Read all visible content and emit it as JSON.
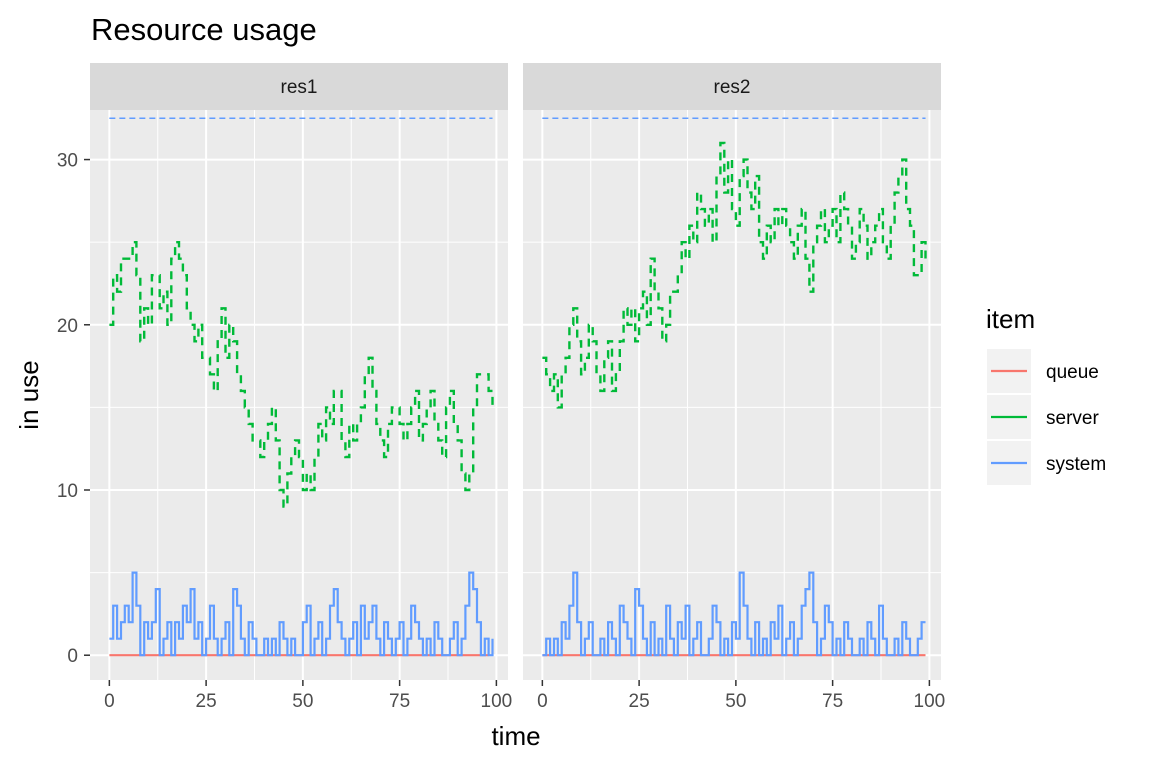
{
  "chart_data": {
    "type": "line",
    "title": "Resource usage",
    "xlabel": "time",
    "ylabel": "in use",
    "xlim": [
      -5,
      103
    ],
    "ylim": [
      -1.5,
      33
    ],
    "x_ticks": [
      0,
      25,
      50,
      75,
      100
    ],
    "x_tick_labels": [
      "0",
      "25",
      "50",
      "75",
      "100"
    ],
    "y_ticks": [
      0,
      10,
      20,
      30
    ],
    "y_tick_labels": [
      "0",
      "10",
      "20",
      "30"
    ],
    "grid": true,
    "legend": {
      "title": "item",
      "position": "right",
      "entries": [
        {
          "name": "queue",
          "color": "#f8766d"
        },
        {
          "name": "server",
          "color": "#00ba38"
        },
        {
          "name": "system",
          "color": "#619cff"
        }
      ]
    },
    "capacity_line": {
      "value": 32.5,
      "color": "#619cff",
      "style": "dashed"
    },
    "panels": [
      {
        "label": "res1",
        "series": [
          {
            "name": "queue",
            "color": "#f8766d",
            "style": "solid",
            "x": [
              0,
              98
            ],
            "y": [
              0,
              0
            ]
          },
          {
            "name": "server",
            "color": "#00ba38",
            "style": "dashed",
            "x": [
              0,
              1,
              2,
              3,
              4,
              5,
              6,
              7,
              8,
              9,
              10,
              11,
              12,
              13,
              14,
              15,
              16,
              17,
              18,
              19,
              20,
              21,
              22,
              23,
              24,
              25,
              26,
              27,
              28,
              29,
              30,
              31,
              32,
              33,
              34,
              35,
              36,
              37,
              38,
              39,
              40,
              41,
              42,
              43,
              44,
              45,
              46,
              47,
              48,
              49,
              50,
              51,
              52,
              53,
              54,
              55,
              56,
              57,
              58,
              59,
              60,
              61,
              62,
              63,
              64,
              65,
              66,
              67,
              68,
              69,
              70,
              71,
              72,
              73,
              74,
              75,
              76,
              77,
              78,
              79,
              80,
              81,
              82,
              83,
              84,
              85,
              86,
              87,
              88,
              89,
              90,
              91,
              92,
              93,
              94,
              95,
              96,
              97,
              98,
              99
            ],
            "y": [
              20,
              23,
              22,
              24,
              24,
              24,
              25,
              23,
              19,
              21,
              20,
              23,
              23,
              21,
              22,
              20,
              24,
              25,
              24,
              23,
              21,
              20,
              19,
              20,
              18,
              18,
              17,
              16,
              19,
              21,
              18,
              20,
              19,
              17,
              16,
              15,
              14,
              13,
              13,
              12,
              13,
              14,
              15,
              13,
              10,
              9,
              11,
              12,
              13,
              12,
              10,
              11,
              10,
              12,
              14,
              13,
              15,
              14,
              16,
              16,
              13,
              12,
              14,
              13,
              14,
              15,
              17,
              18,
              16,
              14,
              13,
              12,
              14,
              15,
              15,
              14,
              13,
              14,
              15,
              16,
              13,
              14,
              15,
              16,
              14,
              13,
              12,
              15,
              16,
              14,
              13,
              11,
              10,
              11,
              15,
              17,
              17,
              17,
              16,
              15
            ]
          },
          {
            "name": "system",
            "color": "#619cff",
            "style": "solid",
            "x": [
              0,
              1,
              2,
              3,
              4,
              5,
              6,
              7,
              8,
              9,
              10,
              11,
              12,
              13,
              14,
              15,
              16,
              17,
              18,
              19,
              20,
              21,
              22,
              23,
              24,
              25,
              26,
              27,
              28,
              29,
              30,
              31,
              32,
              33,
              34,
              35,
              36,
              37,
              38,
              39,
              40,
              41,
              42,
              43,
              44,
              45,
              46,
              47,
              48,
              49,
              50,
              51,
              52,
              53,
              54,
              55,
              56,
              57,
              58,
              59,
              60,
              61,
              62,
              63,
              64,
              65,
              66,
              67,
              68,
              69,
              70,
              71,
              72,
              73,
              74,
              75,
              76,
              77,
              78,
              79,
              80,
              81,
              82,
              83,
              84,
              85,
              86,
              87,
              88,
              89,
              90,
              91,
              92,
              93,
              94,
              95,
              96,
              97,
              98,
              99
            ],
            "y": [
              1,
              3,
              1,
              2,
              3,
              2,
              5,
              3,
              0,
              2,
              1,
              2,
              4,
              0,
              1,
              2,
              0,
              2,
              1,
              3,
              2,
              4,
              1,
              2,
              0,
              1,
              3,
              1,
              0,
              1,
              2,
              0,
              4,
              3,
              1,
              0,
              2,
              1,
              0,
              0,
              1,
              0,
              1,
              0,
              2,
              1,
              0,
              1,
              0,
              0,
              2,
              3,
              0,
              1,
              2,
              0,
              1,
              3,
              4,
              2,
              1,
              0,
              1,
              2,
              0,
              3,
              1,
              2,
              3,
              1,
              0,
              2,
              1,
              0,
              1,
              2,
              0,
              1,
              3,
              2,
              1,
              0,
              1,
              0,
              2,
              1,
              0,
              0,
              1,
              2,
              0,
              1,
              3,
              5,
              4,
              2,
              0,
              1,
              0,
              1
            ]
          }
        ]
      },
      {
        "label": "res2",
        "series": [
          {
            "name": "queue",
            "color": "#f8766d",
            "style": "solid",
            "x": [
              0,
              99
            ],
            "y": [
              0,
              0
            ]
          },
          {
            "name": "server",
            "color": "#00ba38",
            "style": "dashed",
            "x": [
              0,
              1,
              2,
              3,
              4,
              5,
              6,
              7,
              8,
              9,
              10,
              11,
              12,
              13,
              14,
              15,
              16,
              17,
              18,
              19,
              20,
              21,
              22,
              23,
              24,
              25,
              26,
              27,
              28,
              29,
              30,
              31,
              32,
              33,
              34,
              35,
              36,
              37,
              38,
              39,
              40,
              41,
              42,
              43,
              44,
              45,
              46,
              47,
              48,
              49,
              50,
              51,
              52,
              53,
              54,
              55,
              56,
              57,
              58,
              59,
              60,
              61,
              62,
              63,
              64,
              65,
              66,
              67,
              68,
              69,
              70,
              71,
              72,
              73,
              74,
              75,
              76,
              77,
              78,
              79,
              80,
              81,
              82,
              83,
              84,
              85,
              86,
              87,
              88,
              89,
              90,
              91,
              92,
              93,
              94,
              95,
              96,
              97,
              98,
              99
            ],
            "y": [
              18,
              17,
              16,
              17,
              15,
              17,
              18,
              20,
              21,
              19,
              17,
              18,
              20,
              19,
              17,
              16,
              18,
              19,
              16,
              17,
              19,
              21,
              20,
              21,
              19,
              21,
              22,
              20,
              24,
              22,
              21,
              19,
              20,
              22,
              22,
              23,
              25,
              24,
              26,
              25,
              28,
              27,
              26,
              27,
              25,
              29,
              31,
              28,
              30,
              27,
              26,
              29,
              30,
              28,
              27,
              29,
              25,
              24,
              26,
              25,
              27,
              26,
              27,
              26,
              25,
              24,
              26,
              27,
              24,
              22,
              25,
              26,
              27,
              25,
              26,
              27,
              25,
              28,
              27,
              26,
              24,
              25,
              27,
              26,
              24,
              25,
              26,
              27,
              25,
              24,
              26,
              28,
              29,
              30,
              27,
              26,
              23,
              23,
              25,
              24
            ]
          },
          {
            "name": "system",
            "color": "#619cff",
            "style": "solid",
            "x": [
              0,
              1,
              2,
              3,
              4,
              5,
              6,
              7,
              8,
              9,
              10,
              11,
              12,
              13,
              14,
              15,
              16,
              17,
              18,
              19,
              20,
              21,
              22,
              23,
              24,
              25,
              26,
              27,
              28,
              29,
              30,
              31,
              32,
              33,
              34,
              35,
              36,
              37,
              38,
              39,
              40,
              41,
              42,
              43,
              44,
              45,
              46,
              47,
              48,
              49,
              50,
              51,
              52,
              53,
              54,
              55,
              56,
              57,
              58,
              59,
              60,
              61,
              62,
              63,
              64,
              65,
              66,
              67,
              68,
              69,
              70,
              71,
              72,
              73,
              74,
              75,
              76,
              77,
              78,
              79,
              80,
              81,
              82,
              83,
              84,
              85,
              86,
              87,
              88,
              89,
              90,
              91,
              92,
              93,
              94,
              95,
              96,
              97,
              98,
              99
            ],
            "y": [
              0,
              1,
              0,
              1,
              0,
              2,
              1,
              3,
              5,
              2,
              0,
              1,
              2,
              0,
              0,
              1,
              0,
              2,
              1,
              0,
              3,
              2,
              1,
              0,
              4,
              3,
              1,
              0,
              2,
              0,
              1,
              0,
              3,
              1,
              0,
              2,
              1,
              3,
              0,
              1,
              2,
              0,
              0,
              1,
              3,
              2,
              0,
              1,
              0,
              2,
              1,
              5,
              3,
              1,
              0,
              2,
              0,
              1,
              0,
              2,
              1,
              3,
              0,
              1,
              2,
              0,
              1,
              3,
              4,
              5,
              2,
              0,
              1,
              3,
              2,
              0,
              1,
              0,
              2,
              1,
              0,
              0,
              1,
              0,
              2,
              1,
              0,
              3,
              1,
              0,
              0,
              1,
              0,
              2,
              1,
              0,
              0,
              1,
              2,
              2
            ]
          }
        ]
      }
    ]
  }
}
